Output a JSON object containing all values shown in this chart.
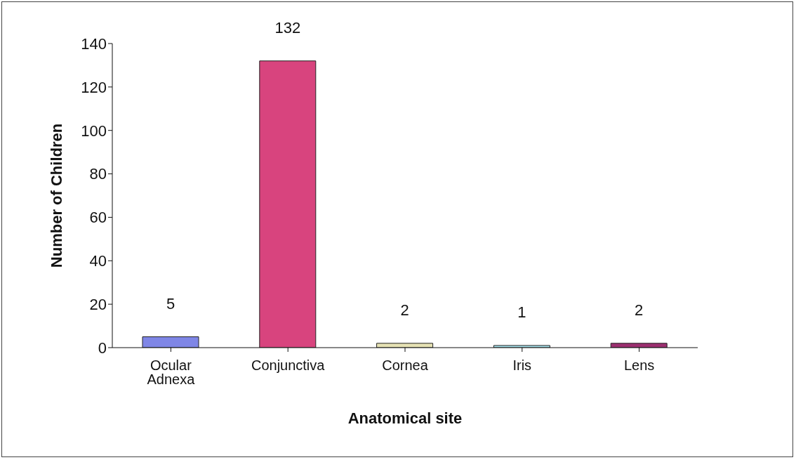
{
  "chart_data": {
    "type": "bar",
    "xlabel": "Anatomical site",
    "ylabel": "Number of Children",
    "categories": [
      "Ocular Adnexa",
      "Conjunctiva",
      "Cornea",
      "Iris",
      "Lens"
    ],
    "values": [
      5,
      132,
      2,
      1,
      2
    ],
    "colors": [
      "#7f86e6",
      "#d8447e",
      "#e6e2b4",
      "#a8e4ee",
      "#9c2f70"
    ],
    "ylim": [
      0,
      140
    ],
    "yticks": [
      0,
      20,
      40,
      60,
      80,
      100,
      120,
      140
    ],
    "data_labels": true,
    "grid": false,
    "legend": false
  }
}
